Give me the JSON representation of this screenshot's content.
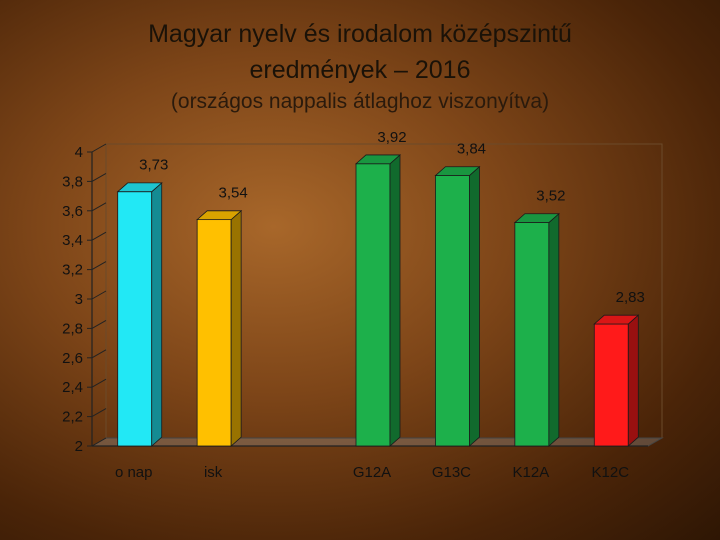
{
  "title_line1": "Magyar nyelv és irodalom középszintű",
  "title_line2": "eredmények – 2016",
  "subtitle": "(országos nappalis átlaghoz viszonyítva)",
  "chart_data": {
    "type": "bar",
    "categories": [
      "o nap",
      "isk",
      "",
      "G12A",
      "G13C",
      "K12A",
      "K12C"
    ],
    "values": [
      3.73,
      3.54,
      null,
      3.92,
      3.84,
      3.52,
      2.83
    ],
    "value_labels": [
      "3,73",
      "3,54",
      "",
      "3,92",
      "3,84",
      "3,52",
      "2,83"
    ],
    "colors": [
      "#22e8f5",
      "#ffc000",
      null,
      "#1db04b",
      "#1db04b",
      "#1db04b",
      "#ff1a1a"
    ],
    "ylim": [
      2,
      4
    ],
    "yticks": [
      "2",
      "2,2",
      "2,4",
      "2,6",
      "2,8",
      "3",
      "3,2",
      "3,4",
      "3,6",
      "3,8",
      "4"
    ],
    "grid": false,
    "style": "3d"
  }
}
